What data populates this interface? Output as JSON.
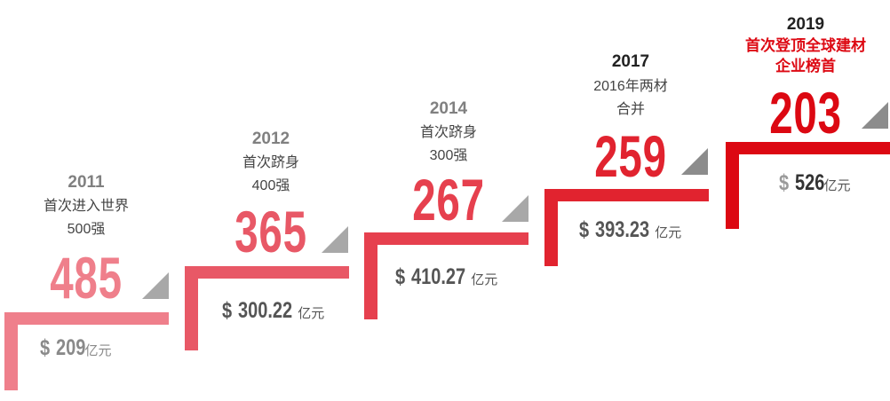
{
  "colors": {
    "triangle": "#a8a8a8",
    "text_gray": "#555555",
    "highlight_red": "#dd0a14"
  },
  "steps": [
    {
      "year": "2011",
      "desc_line1": "首次进入世界",
      "desc_line2": "500强",
      "rank": "485",
      "currency": "$",
      "revenue": "209",
      "unit": "亿元",
      "color": "#ef7f8b"
    },
    {
      "year": "2012",
      "desc_line1": "首次跻身",
      "desc_line2": "400强",
      "rank": "365",
      "currency": "$",
      "revenue": "300.22",
      "unit": "亿元",
      "color": "#e85866"
    },
    {
      "year": "2014",
      "desc_line1": "首次跻身",
      "desc_line2": "300强",
      "rank": "267",
      "currency": "$",
      "revenue": "410.27",
      "unit": "亿元",
      "color": "#e6404e"
    },
    {
      "year": "2017",
      "desc_line1": "2016年两材",
      "desc_line2": "合并",
      "rank": "259",
      "currency": "$",
      "revenue": "393.23",
      "unit": "亿元",
      "color": "#e1232f"
    },
    {
      "year": "2019",
      "desc_line1": "首次登顶全球建材",
      "desc_line2": "企业榜首",
      "rank": "203",
      "currency": "$",
      "revenue": "526",
      "unit": "亿元",
      "color": "#dc0812"
    }
  ]
}
